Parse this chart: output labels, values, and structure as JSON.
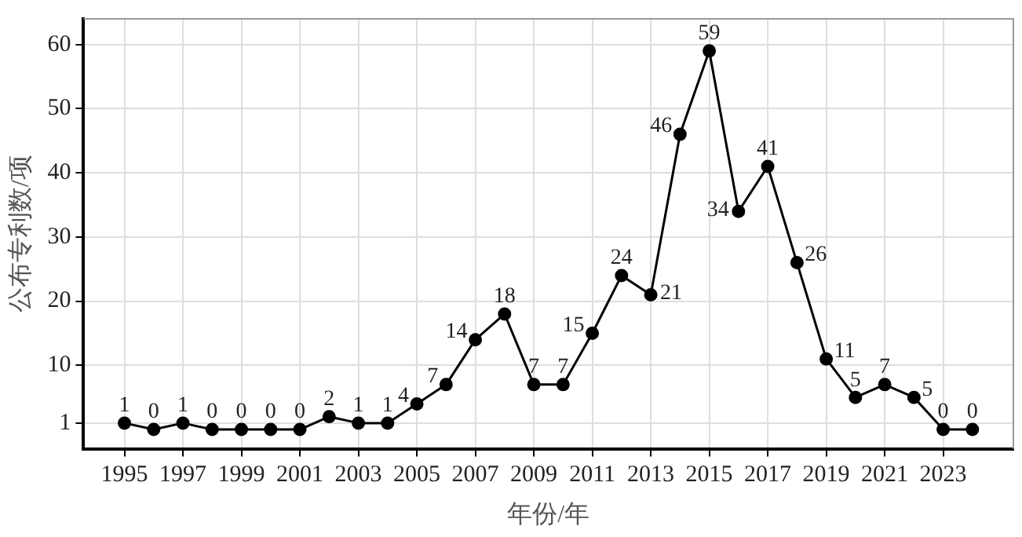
{
  "chart_data": {
    "type": "line",
    "xlabel": "年份/年",
    "ylabel": "公布专利数/项",
    "x": [
      1995,
      1996,
      1997,
      1998,
      1999,
      2000,
      2001,
      2002,
      2003,
      2004,
      2005,
      2006,
      2007,
      2008,
      2009,
      2010,
      2011,
      2012,
      2013,
      2014,
      2015,
      2016,
      2017,
      2018,
      2019,
      2020,
      2021,
      2022,
      2023,
      2024
    ],
    "series": [
      {
        "color": "#000000",
        "values": [
          1,
          0,
          1,
          0,
          0,
          0,
          0,
          2,
          1,
          1,
          4,
          7,
          14,
          18,
          7,
          7,
          15,
          24,
          21,
          46,
          59,
          34,
          41,
          26,
          11,
          5,
          7,
          5,
          0,
          0
        ]
      }
    ],
    "xlim": [
      1993.6,
      2025.4
    ],
    "xticks": [
      1995,
      1997,
      1999,
      2001,
      2003,
      2005,
      2007,
      2009,
      2011,
      2013,
      2015,
      2017,
      2019,
      2021,
      2023
    ],
    "ylim": [
      -3,
      64
    ],
    "yticks": [
      1,
      10,
      20,
      30,
      40,
      50,
      60
    ],
    "grid": true,
    "legend": false,
    "marker": "circle",
    "line_style": "solid",
    "data_labels": true
  }
}
